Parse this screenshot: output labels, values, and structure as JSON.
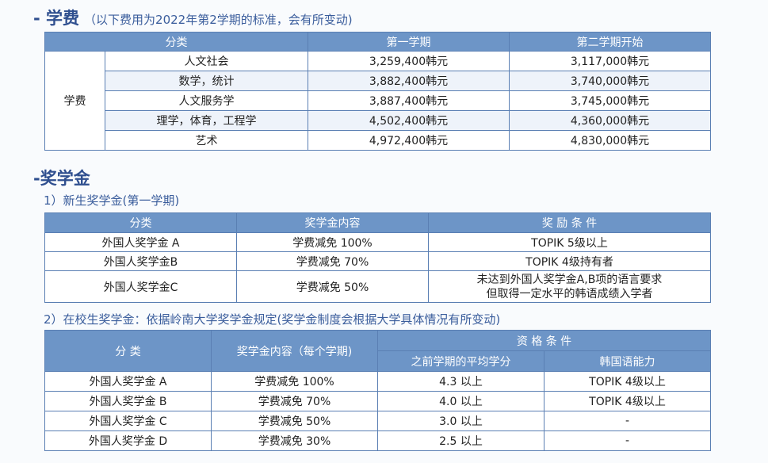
{
  "tuition": {
    "heading": "- 学费",
    "note": "（以下费用为2022年第2学期的标准，会有所变动)",
    "headers": [
      "分类",
      "第一学期",
      "第二学期开始"
    ],
    "group": "学费",
    "rows": [
      {
        "cat": "人文社会",
        "first": "3,259,400韩元",
        "second": "3,117,000韩元"
      },
      {
        "cat": "数学，统计",
        "first": "3,882,400韩元",
        "second": "3,740,000韩元"
      },
      {
        "cat": "人文服务学",
        "first": "3,887,400韩元",
        "second": "3,745,000韩元"
      },
      {
        "cat": "理学，体育，工程学",
        "first": "4,502,400韩元",
        "second": "4,360,000韩元"
      },
      {
        "cat": "艺术",
        "first": "4,972,400韩元",
        "second": "4,830,000韩元"
      }
    ]
  },
  "scholarship": {
    "heading": "-奖学金",
    "new": {
      "title": "1）新生奖学金(第一学期)",
      "headers": [
        "分类",
        "奖学金内容",
        "奖 励 条 件"
      ],
      "rows": [
        {
          "cat": "外国人奖学金 A",
          "content": "学费减免 100%",
          "cond": "TOPIK 5级以上",
          "cond2": ""
        },
        {
          "cat": "外国人奖学金B",
          "content": "学费减免  70%",
          "cond": "TOPIK 4级持有者",
          "cond2": ""
        },
        {
          "cat": "外国人奖学金C",
          "content": "学费减免  50%",
          "cond": "未达到外国人奖学金A,B项的语言要求",
          "cond2": "但取得一定水平的韩语成绩入学者"
        }
      ]
    },
    "current": {
      "title": "2）在校生奖学金：依据岭南大学奖学金规定(奖学金制度会根据大学具体情况有所变动)",
      "headers": {
        "cat": "分  类",
        "content": "奖学金内容（每个学期)",
        "qual": "资 格 条 件",
        "gpa": "之前学期的平均学分",
        "korean": "韩国语能力"
      },
      "rows": [
        {
          "cat": "外国人奖学金 A",
          "content": "学费减免 100%",
          "gpa": "4.3 以上",
          "korean": "TOPIK 4级以上"
        },
        {
          "cat": "外国人奖学金 B",
          "content": "学费减免  70%",
          "gpa": "4.0 以上",
          "korean": "TOPIK 4级以上"
        },
        {
          "cat": "外国人奖学金 C",
          "content": "学费减免  50%",
          "gpa": "3.0 以上",
          "korean": "-"
        },
        {
          "cat": "外国人奖学金 D",
          "content": "学费减免  30%",
          "gpa": "2.5 以上",
          "korean": "-"
        }
      ]
    }
  }
}
